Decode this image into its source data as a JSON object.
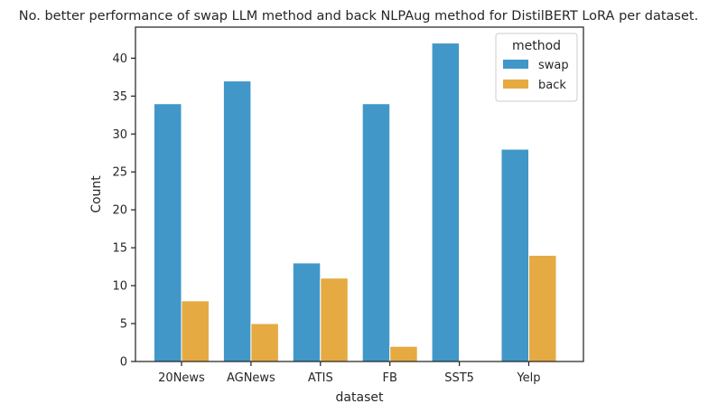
{
  "chart_data": {
    "type": "bar",
    "title": "No. better performance of swap LLM method and back NLPAug method for DistilBERT LoRA per dataset.",
    "xlabel": "dataset",
    "ylabel": "Count",
    "categories": [
      "20News",
      "AGNews",
      "ATIS",
      "FB",
      "SST5",
      "Yelp"
    ],
    "series": [
      {
        "name": "swap",
        "values": [
          34,
          37,
          13,
          34,
          42,
          28
        ],
        "color": "#4097c8"
      },
      {
        "name": "back",
        "values": [
          8,
          5,
          11,
          2,
          0,
          14
        ],
        "color": "#e6aa43"
      }
    ],
    "ylim": [
      0,
      44.1
    ],
    "yticks": [
      0,
      5,
      10,
      15,
      20,
      25,
      30,
      35,
      40
    ],
    "grid": false,
    "legend": {
      "title": "method",
      "placement": "top-right"
    }
  }
}
